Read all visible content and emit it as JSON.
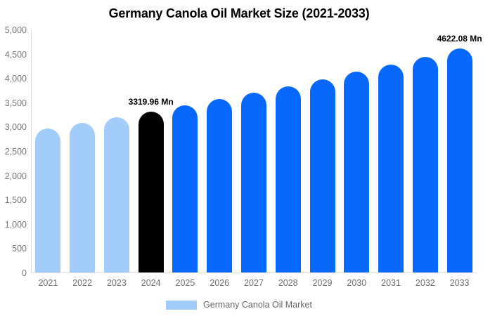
{
  "chart_data": {
    "type": "bar",
    "title": "Germany Canola Oil Market Size (2021-2033)",
    "unit": "Mn",
    "categories": [
      "2021",
      "2022",
      "2023",
      "2024",
      "2025",
      "2026",
      "2027",
      "2028",
      "2029",
      "2030",
      "2031",
      "2032",
      "2033"
    ],
    "values": [
      2973,
      3085,
      3200,
      3319.96,
      3444,
      3573,
      3707,
      3846,
      3990,
      4139,
      4294,
      4455,
      4622.08
    ],
    "data_labels": {
      "2024": "3319.96 Mn",
      "2033": "4622.08 Mn"
    },
    "point_colors": [
      "#a2ccfa",
      "#a2ccfa",
      "#a2ccfa",
      "#000000",
      "#0768fb",
      "#0768fb",
      "#0768fb",
      "#0768fb",
      "#0768fb",
      "#0768fb",
      "#0768fb",
      "#0768fb",
      "#0768fb"
    ],
    "colors": {
      "historical": "#a2ccfa",
      "base_year": "#000000",
      "forecast": "#0768fb"
    },
    "xlabel": "",
    "ylabel": "",
    "ylim": [
      0,
      5000
    ],
    "ytick_step": 500,
    "ytick_labels": [
      "5,000",
      "4,500",
      "4,000",
      "3,500",
      "3,000",
      "2,500",
      "2,000",
      "1,500",
      "1,000",
      "500",
      "0"
    ],
    "grid": false,
    "legend_position": "bottom"
  },
  "legend": {
    "label": "Germany Canola Oil Market",
    "swatch_color": "#a2ccfa"
  }
}
